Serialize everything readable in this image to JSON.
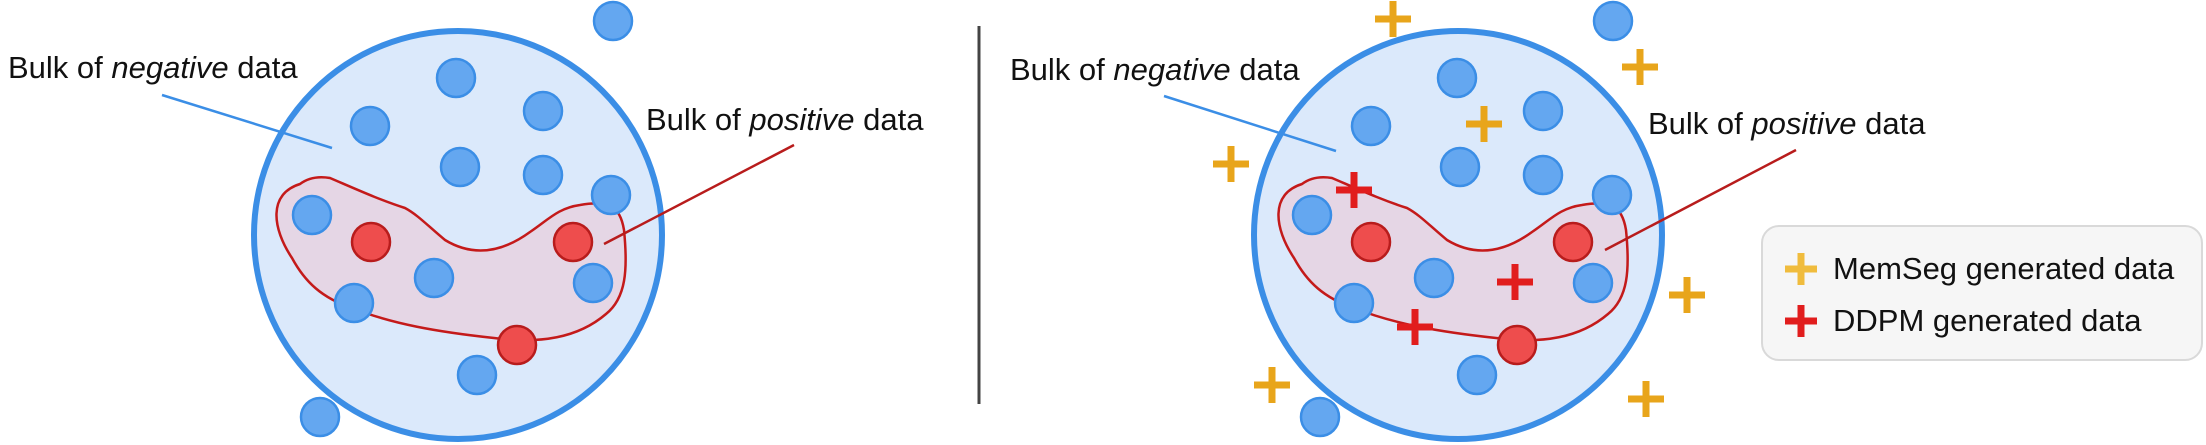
{
  "colors": {
    "circle_fill": "#dbe9fb",
    "circle_stroke": "#3b8ee6",
    "blue_point": "#64a7f0",
    "blue_point_stroke": "#3b8ee6",
    "red_point": "#ee4d4d",
    "red_point_stroke": "#b81c1c",
    "positive_region_fill": "#e5d6e5",
    "positive_region_stroke": "#c41a1a",
    "negative_line": "#3b8ee6",
    "positive_line": "#b81c1c",
    "memseg_plus": "#e8a51b",
    "ddpm_plus": "#e11d1d",
    "divider": "#444444"
  },
  "left_panel": {
    "negative_label": {
      "prefix": "Bulk of ",
      "emph": "negative",
      "suffix": " data"
    },
    "positive_label": {
      "prefix": "Bulk of ",
      "emph": "positive",
      "suffix": " data"
    }
  },
  "right_panel": {
    "negative_label": {
      "prefix": "Bulk of ",
      "emph": "negative",
      "suffix": " data"
    },
    "positive_label": {
      "prefix": "Bulk of ",
      "emph": "positive",
      "suffix": " data"
    }
  },
  "legend": {
    "items": [
      {
        "label": "MemSeg generated data",
        "icon": "plus-icon-orange"
      },
      {
        "label": "DDPM generated data",
        "icon": "plus-icon-red"
      }
    ]
  }
}
